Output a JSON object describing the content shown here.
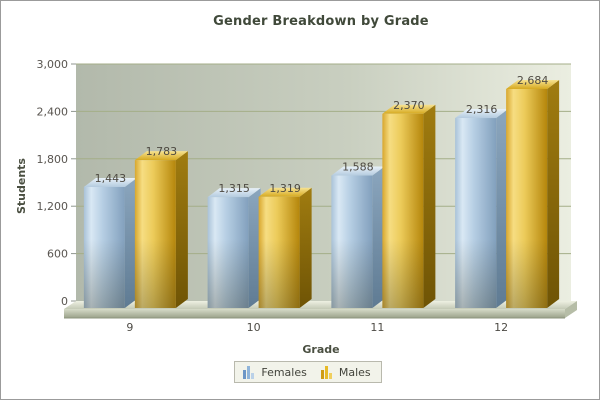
{
  "chart_data": {
    "type": "bar",
    "title": "Gender Breakdown by Grade",
    "xlabel": "Grade",
    "ylabel": "Students",
    "categories": [
      "9",
      "10",
      "11",
      "12"
    ],
    "series": [
      {
        "name": "Females",
        "values": [
          1443,
          1315,
          1588,
          2316
        ],
        "labels": [
          "1,443",
          "1,315",
          "1,588",
          "2,316"
        ]
      },
      {
        "name": "Males",
        "values": [
          1783,
          1319,
          2370,
          2684
        ],
        "labels": [
          "1,783",
          "1,319",
          "2,370",
          "2,684"
        ]
      }
    ],
    "ylim": [
      0,
      3000
    ],
    "ytick_step": 600,
    "ytick_labels": [
      "0",
      "600",
      "1,200",
      "1,800",
      "2,400",
      "3,000"
    ],
    "grid": "horizontal",
    "legend_position": "bottom",
    "style_3d": true
  },
  "styles": {
    "wall_gradient": [
      "#b2b9ab",
      "#c9cfc0",
      "#ebeee1"
    ],
    "grid_color": "#a4ae88",
    "tick_color": "#8f968f",
    "ytick_text": "#595550",
    "xtick_text": "#4d4b45",
    "value_text": "#4e4a42",
    "floor_top": [
      "#eef0e2",
      "#c4cab6"
    ],
    "floor_front": [
      "#d6dbc8",
      "#9aa189"
    ],
    "floor_edge": "#8d947e",
    "females": {
      "front": [
        "#a9c2d8",
        "#d9e8f4",
        "#b7cfe4",
        "#82a0bd"
      ],
      "side": [
        "#8ba6be",
        "#5f7b93"
      ],
      "top": [
        "#e8f1f8",
        "#b4cbdf"
      ],
      "icon": [
        "#6d96c6",
        "#8fb4da",
        "#bad1e8"
      ]
    },
    "males": {
      "front": [
        "#d8a72e",
        "#f6dd82",
        "#eccb5a",
        "#b5860b"
      ],
      "side": [
        "#a07c10",
        "#6f5405"
      ],
      "top": [
        "#f6e292",
        "#d6a91f"
      ],
      "icon": [
        "#cf9c14",
        "#e7ba28",
        "#f0cf5e"
      ]
    }
  }
}
